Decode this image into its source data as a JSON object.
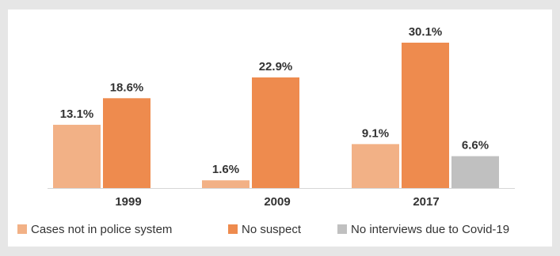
{
  "chart_data": {
    "type": "bar",
    "categories": [
      "1999",
      "2009",
      "2017"
    ],
    "series": [
      {
        "name": "Cases not in police system",
        "color": "#f2b186",
        "values": [
          13.1,
          1.6,
          9.1
        ],
        "labels": [
          "13.1%",
          "1.6%",
          "9.1%"
        ]
      },
      {
        "name": "No suspect",
        "color": "#ee8b4e",
        "values": [
          18.6,
          22.9,
          30.1
        ],
        "labels": [
          "18.6%",
          "22.9%",
          "30.1%"
        ]
      },
      {
        "name": "No interviews due to Covid-19",
        "color": "#c0c0c0",
        "values": [
          null,
          null,
          6.6
        ],
        "labels": [
          null,
          null,
          "6.6%"
        ]
      }
    ],
    "ylim": [
      0,
      30.1
    ],
    "grid": false,
    "legend": "bottom"
  }
}
